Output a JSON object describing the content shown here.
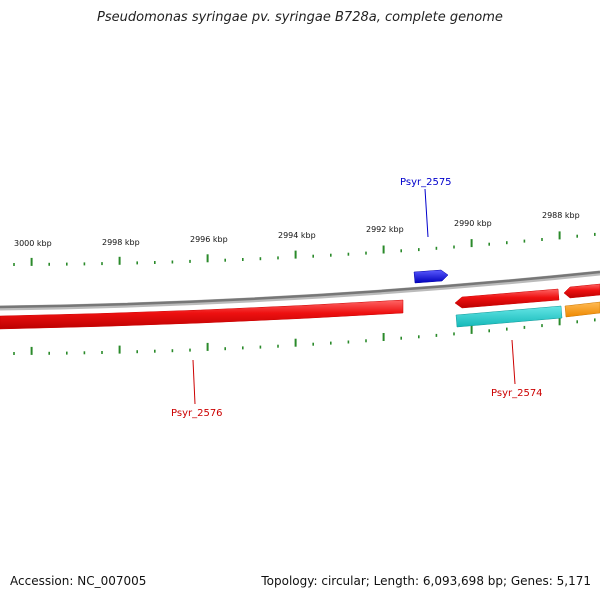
{
  "title": "Pseudomonas syringae pv. syringae B728a, complete genome",
  "footer": {
    "accession": "Accession: NC_007005",
    "summary": "Topology: circular; Length: 6,093,698 bp; Genes: 5,171"
  },
  "tick_labels": [
    "3000 kbp",
    "2998 kbp",
    "2996 kbp",
    "2994 kbp",
    "2992 kbp",
    "2990 kbp",
    "2988 kbp"
  ],
  "gene_labels": [
    {
      "name": "Psyr_2575",
      "color": "#0000cc"
    },
    {
      "name": "Psyr_2576",
      "color": "#cc0000"
    },
    {
      "name": "Psyr_2574",
      "color": "#cc0000"
    }
  ],
  "colors": {
    "tick": "#2a8a2a",
    "backbone": "#8c8c8c",
    "forward_gene": "#ee1111",
    "cds_blue": "#1111ee",
    "cds_cyan": "#22cccc",
    "cds_orange": "#ff9900"
  }
}
